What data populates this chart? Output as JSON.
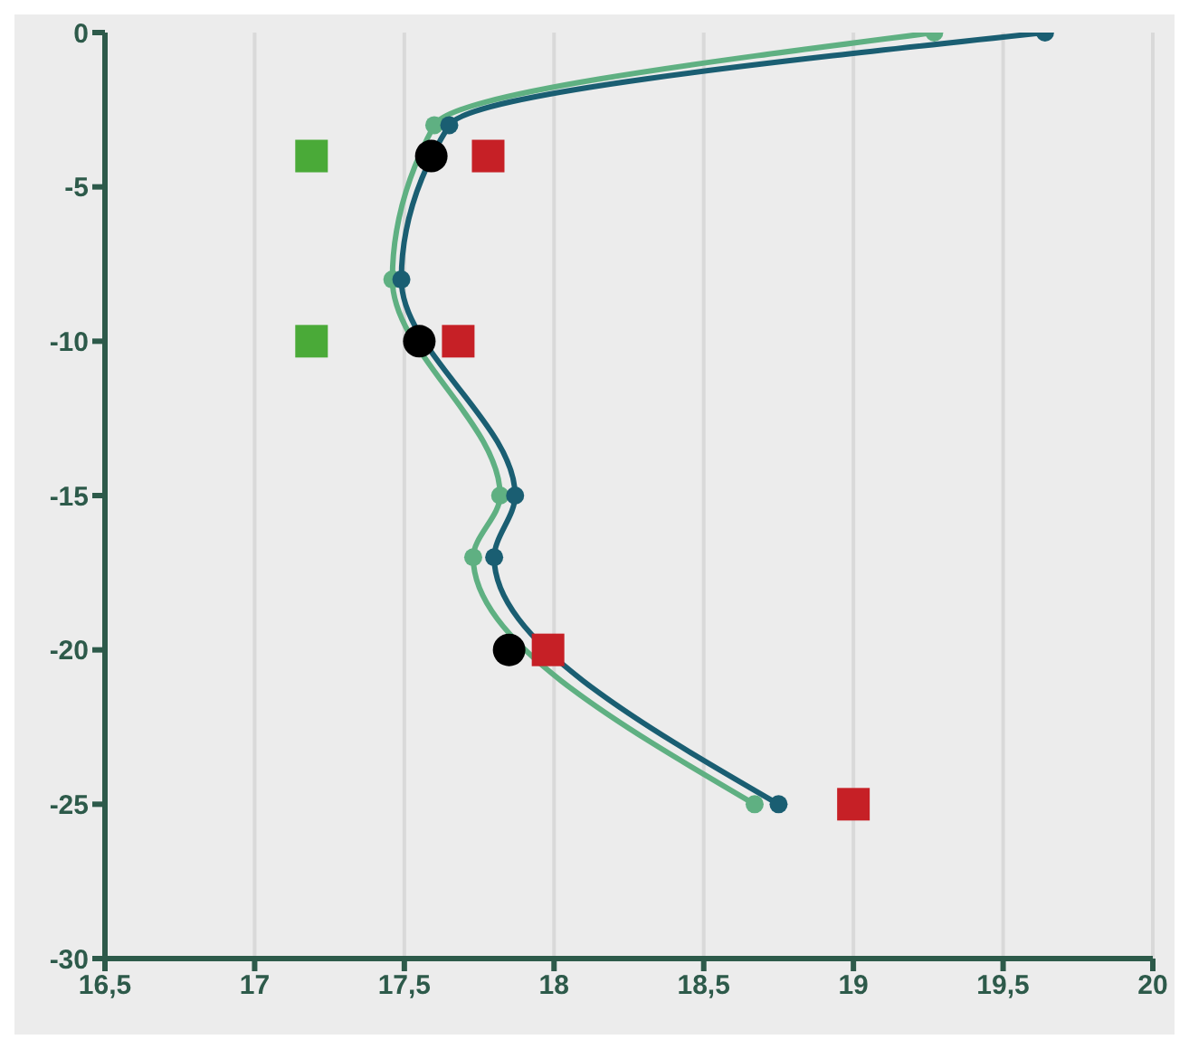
{
  "chart_data": {
    "type": "line",
    "xlim": [
      16.5,
      20
    ],
    "xticks": [
      {
        "value": 16.5,
        "label": "16,5"
      },
      17,
      {
        "value": 17.5,
        "label": "17,5"
      },
      18,
      {
        "value": 18.5,
        "label": "18,5"
      },
      19,
      {
        "value": 19.5,
        "label": "19,5"
      },
      20
    ],
    "ylim": [
      -30,
      0
    ],
    "yticks": [
      -30,
      -25,
      -20,
      -15,
      -10,
      -5,
      0
    ],
    "grid": "x",
    "series": [
      {
        "type": "line",
        "color": "#5fb082",
        "marker": "circle",
        "x": [
          19.27,
          17.6,
          17.46,
          17.82,
          17.73,
          18.67
        ],
        "values": [
          0,
          -3,
          -8,
          -15,
          -17,
          -25
        ]
      },
      {
        "type": "line",
        "color": "#1a5e72",
        "marker": "circle",
        "x": [
          19.64,
          17.65,
          17.49,
          17.87,
          17.8,
          18.75
        ],
        "values": [
          0,
          -3,
          -8,
          -15,
          -17,
          -25
        ]
      },
      {
        "type": "scatter",
        "color": "#000000",
        "marker": "circle",
        "x": [
          17.59,
          17.55,
          17.85
        ],
        "values": [
          -4,
          -10,
          -20
        ]
      },
      {
        "type": "scatter",
        "color": "#c62026",
        "marker": "square",
        "x": [
          17.78,
          17.68,
          17.98,
          19.0
        ],
        "values": [
          -4,
          -10,
          -20,
          -25
        ]
      },
      {
        "type": "scatter",
        "color": "#4aaa38",
        "marker": "square",
        "x": [
          17.19,
          17.19
        ],
        "values": [
          -4,
          -10
        ]
      }
    ]
  }
}
